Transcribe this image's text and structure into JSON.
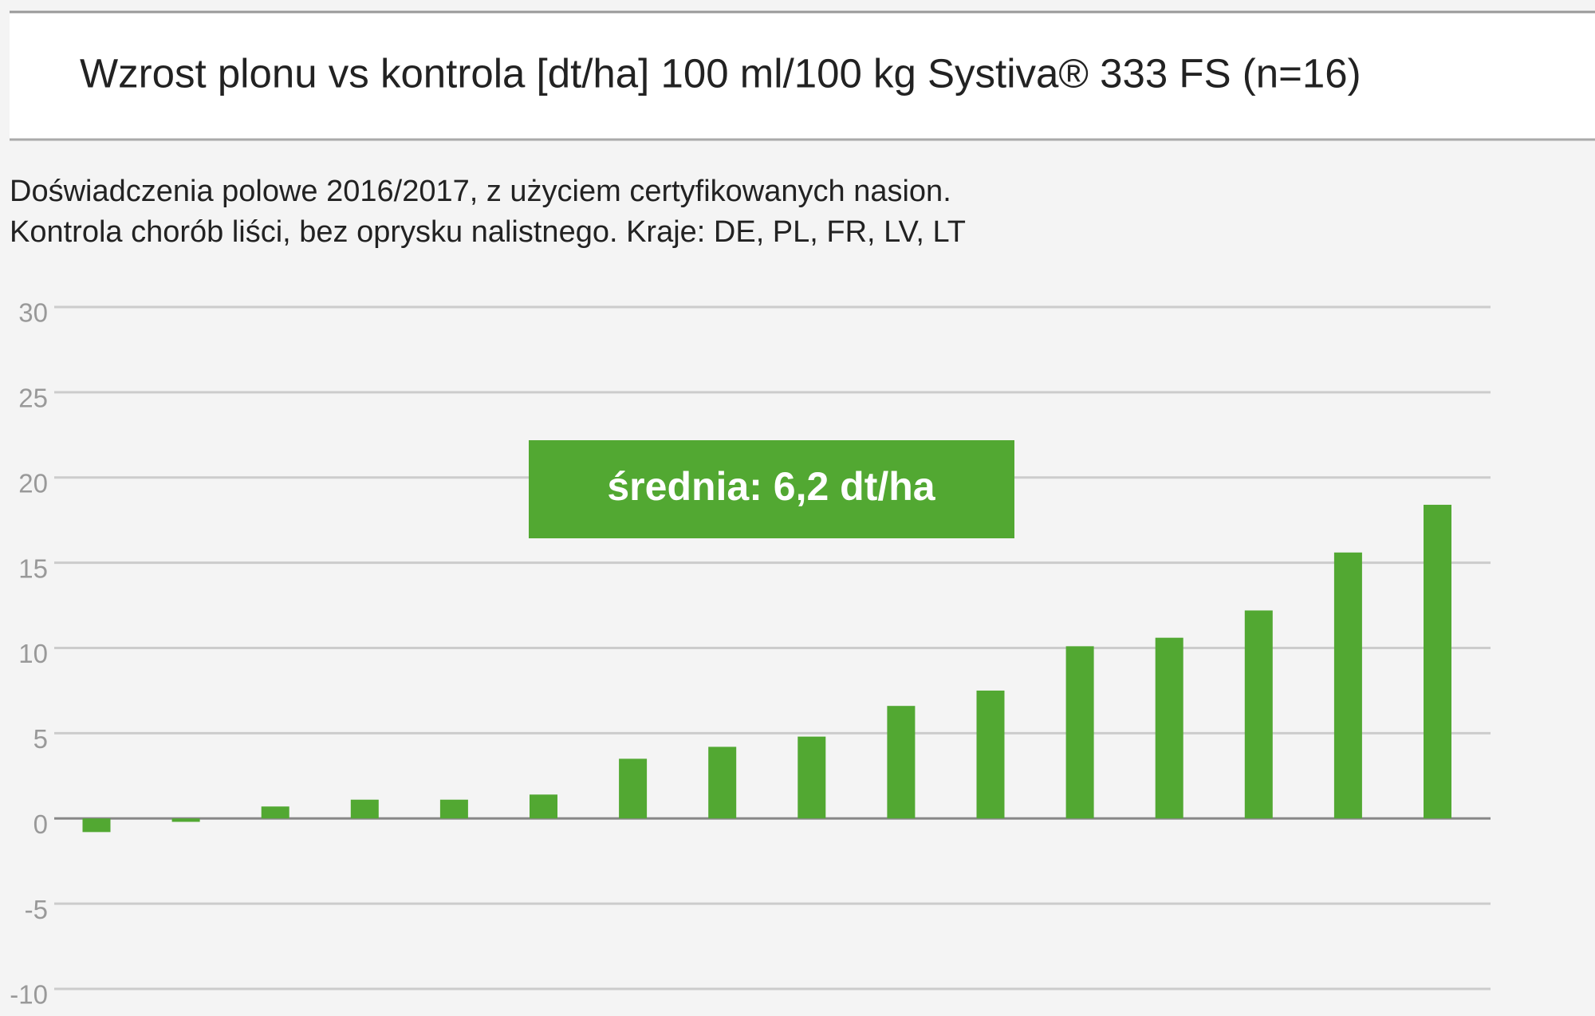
{
  "chart_data": {
    "type": "bar",
    "title": "Wzrost plonu vs kontrola [dt/ha] 100 ml/100 kg Systiva® 333 FS (n=16)",
    "subtitle": [
      "Doświadczenia polowe 2016/2017, z użyciem certyfikowanych nasion.",
      "Kontrola chorób liści, bez oprysku nalistnego. Kraje: DE, PL, FR, LV, LT"
    ],
    "annotation": "średnia: 6,2 dt/ha",
    "categories": [
      null,
      null,
      null,
      null,
      null,
      null,
      null,
      null,
      null,
      null,
      null,
      null,
      null,
      null,
      null,
      null
    ],
    "values": [
      -0.8,
      -0.2,
      0.7,
      1.1,
      1.1,
      1.4,
      3.5,
      4.2,
      4.8,
      6.6,
      7.5,
      10.1,
      10.6,
      12.2,
      15.6,
      18.4
    ],
    "color": "#52a832",
    "ylim": [
      -10,
      30
    ],
    "yticks": [
      -10,
      -5,
      0,
      5,
      10,
      15,
      20,
      25,
      30
    ],
    "grid": true
  }
}
